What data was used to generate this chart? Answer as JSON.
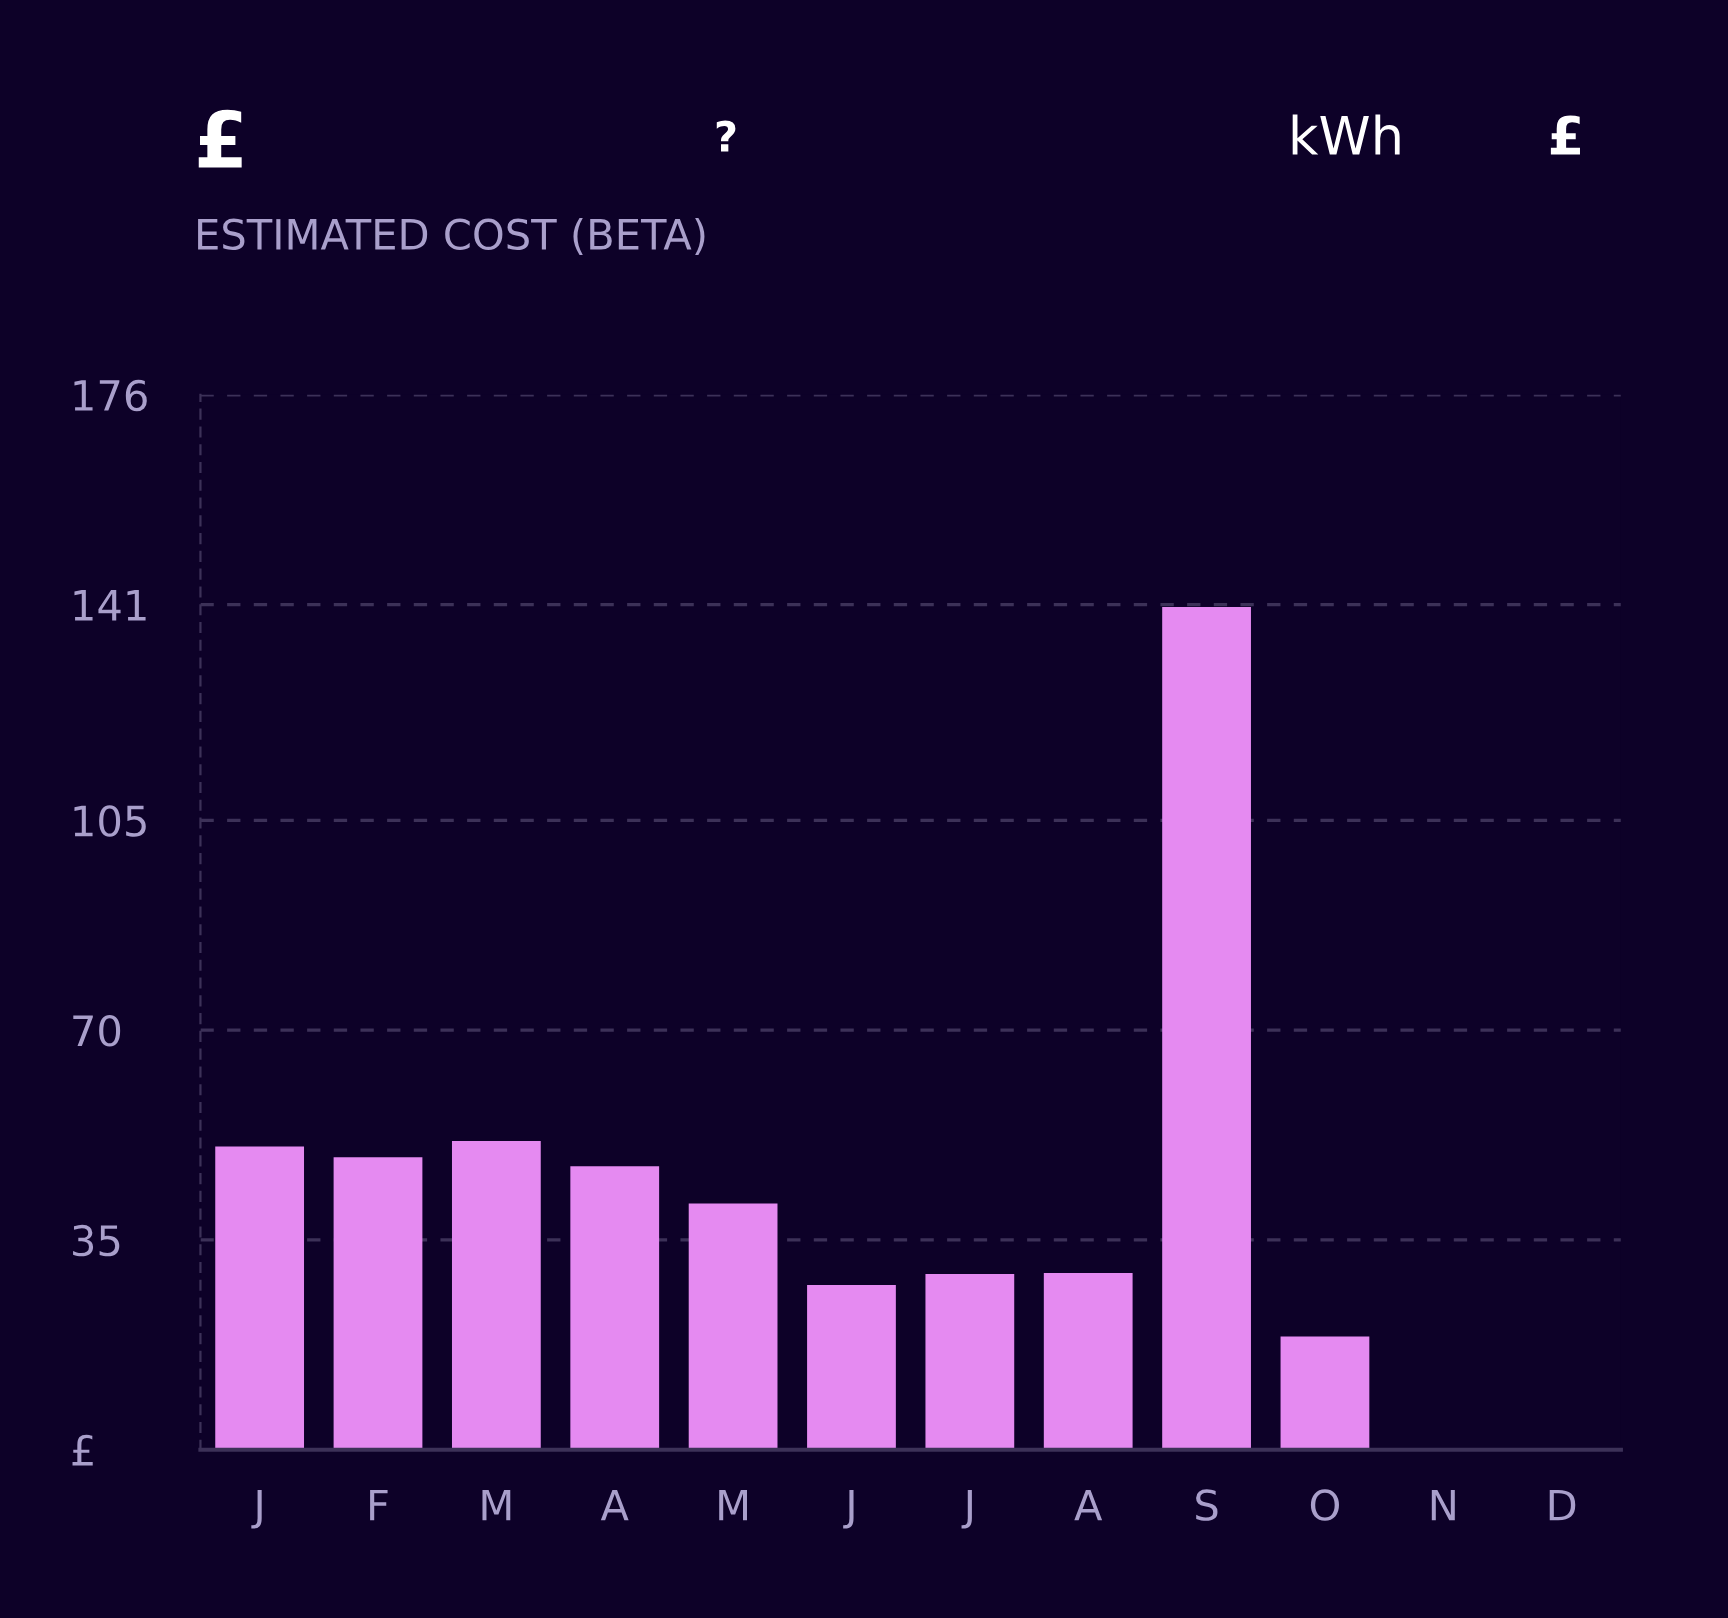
{
  "chart_data": {
    "type": "bar",
    "title": "£",
    "subtitle": "ESTIMATED COST (BETA)",
    "annotations": [
      "?",
      "kWh",
      "£"
    ],
    "categories": [
      "J",
      "F",
      "M",
      "A",
      "M",
      "J",
      "J",
      "A",
      "S",
      "O",
      "N",
      "D"
    ],
    "values": [
      50.6,
      48.8,
      51.5,
      47.3,
      41.1,
      27.5,
      29.3,
      29.5,
      140.6,
      18.9,
      null,
      null
    ],
    "color": "#e58af1",
    "ylim": [
      0,
      176
    ],
    "yticks": [
      {
        "value": 0,
        "label": "£"
      },
      35,
      70,
      105,
      141,
      176
    ],
    "grid": "y",
    "legend": false
  }
}
